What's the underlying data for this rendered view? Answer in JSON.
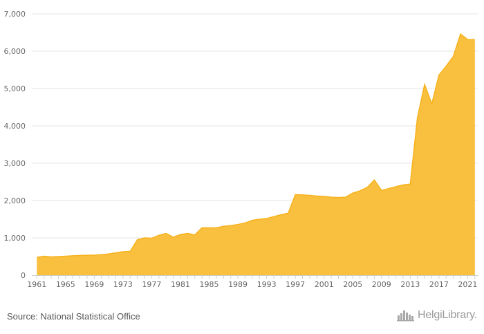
{
  "chart_data": {
    "type": "area",
    "title": "",
    "xlabel": "",
    "ylabel": "",
    "x": [
      1961,
      1962,
      1963,
      1964,
      1965,
      1966,
      1967,
      1968,
      1969,
      1970,
      1971,
      1972,
      1973,
      1974,
      1975,
      1976,
      1977,
      1978,
      1979,
      1980,
      1981,
      1982,
      1983,
      1984,
      1985,
      1986,
      1987,
      1988,
      1989,
      1990,
      1991,
      1992,
      1993,
      1994,
      1995,
      1996,
      1997,
      1998,
      1999,
      2000,
      2001,
      2002,
      2003,
      2004,
      2005,
      2006,
      2007,
      2008,
      2009,
      2010,
      2011,
      2012,
      2013,
      2014,
      2015,
      2016,
      2017,
      2018,
      2019,
      2020,
      2021,
      2022
    ],
    "values": [
      480,
      510,
      490,
      500,
      510,
      520,
      530,
      535,
      540,
      550,
      570,
      600,
      630,
      640,
      950,
      1000,
      990,
      1070,
      1120,
      1020,
      1090,
      1120,
      1080,
      1270,
      1270,
      1270,
      1310,
      1330,
      1360,
      1400,
      1470,
      1500,
      1520,
      1570,
      1620,
      1660,
      2160,
      2150,
      2140,
      2120,
      2110,
      2090,
      2080,
      2090,
      2200,
      2260,
      2350,
      2550,
      2270,
      2320,
      2370,
      2420,
      2440,
      4220,
      5110,
      4590,
      5360,
      5600,
      5860,
      6460,
      6310,
      6310
    ],
    "xticks": [
      "1961",
      "1965",
      "1969",
      "1973",
      "1977",
      "1981",
      "1985",
      "1989",
      "1993",
      "1997",
      "2001",
      "2005",
      "2009",
      "2013",
      "2017",
      "2021"
    ],
    "yticks": [
      "0",
      "1,000",
      "2,000",
      "3,000",
      "4,000",
      "5,000",
      "6,000",
      "7,000"
    ],
    "ylim": [
      0,
      7000
    ],
    "grid": true,
    "fill_color": "#F9BC34",
    "line_color": "#F7B21C"
  },
  "footer": {
    "source": "Source: National Statistical Office",
    "logo_text": "HelgiLibrary."
  },
  "logo_icon": "skyline-icon"
}
